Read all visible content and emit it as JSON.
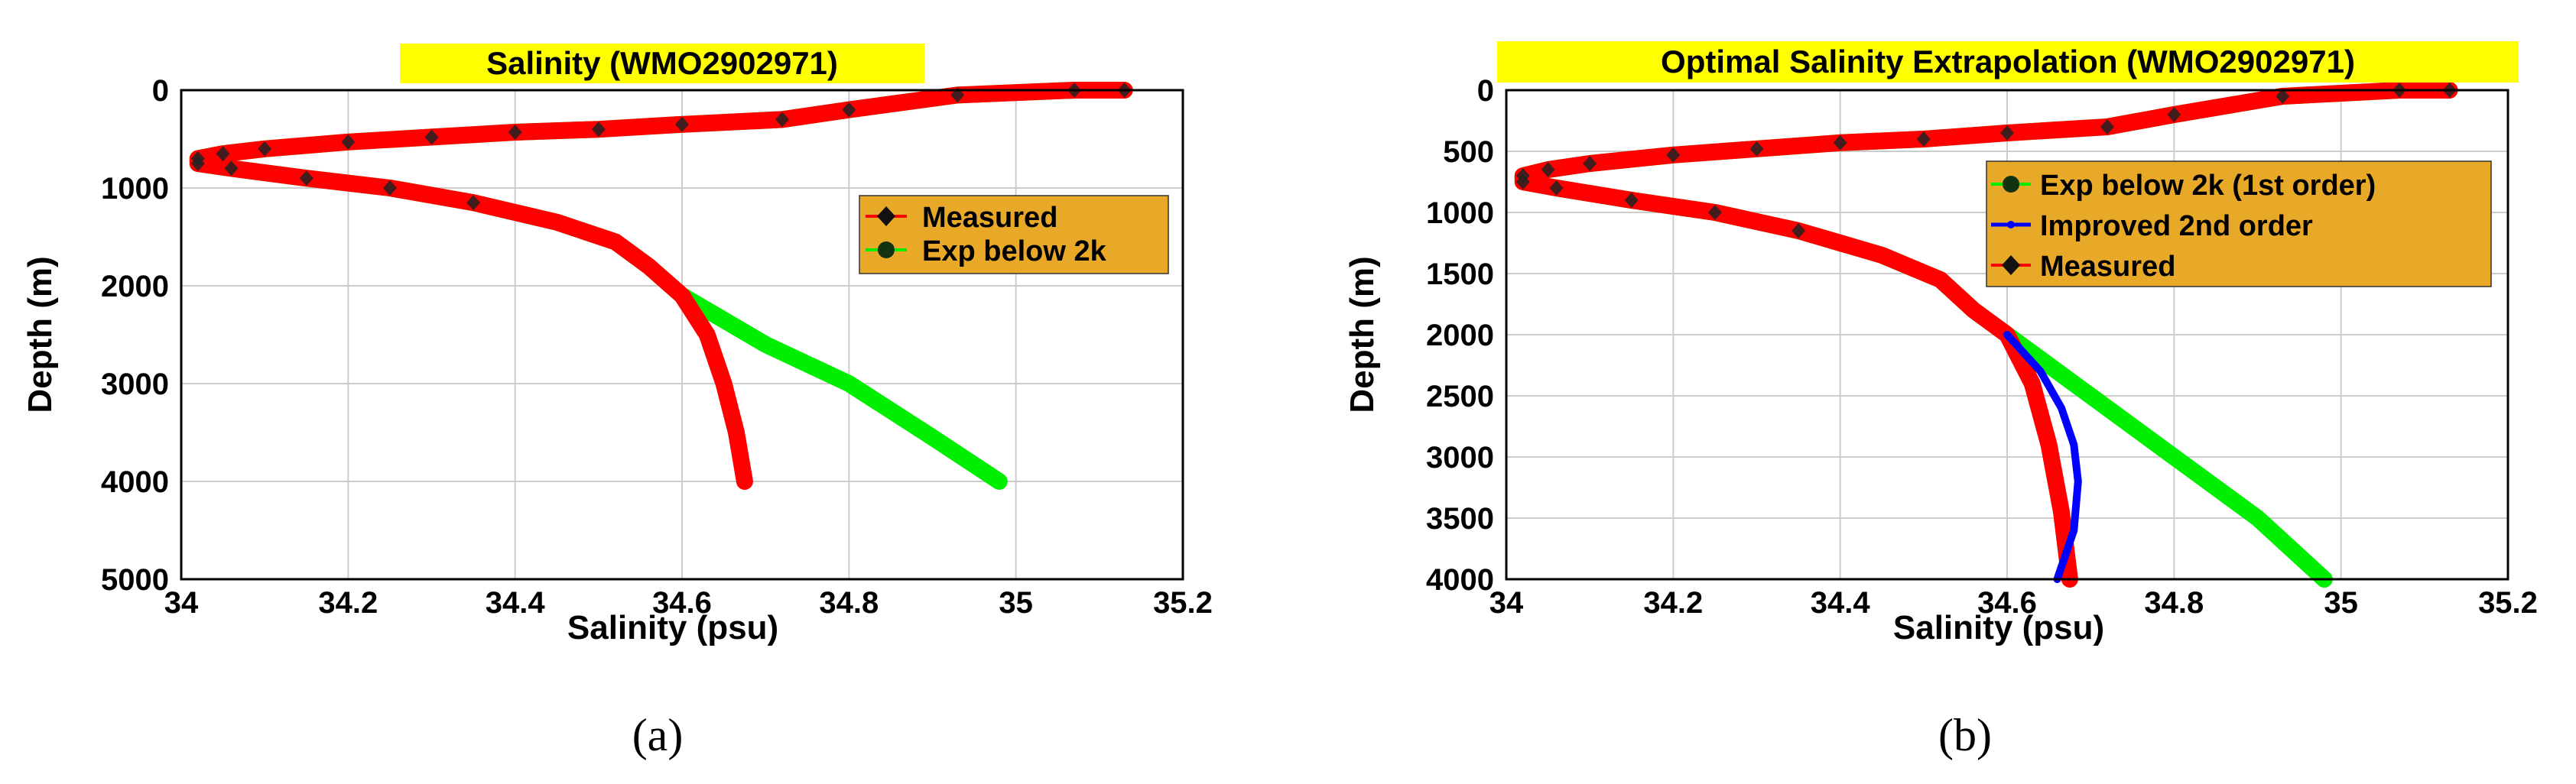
{
  "chart_data": [
    {
      "type": "line",
      "panel_label": "(a)",
      "title": "Salinity (WMO2902971)",
      "xlabel": "Salinity (psu)",
      "ylabel": "Depth (m)",
      "xlim": [
        34,
        35.2
      ],
      "ylim": [
        0,
        5000
      ],
      "y_inverted": true,
      "xticks": [
        34,
        34.2,
        34.4,
        34.6,
        34.8,
        35,
        35.2
      ],
      "xtick_labels": [
        "34",
        "34.2",
        "34.4",
        "34.6",
        "34.8",
        "35",
        "35.2"
      ],
      "yticks": [
        0,
        1000,
        2000,
        3000,
        4000,
        5000
      ],
      "ytick_labels": [
        "0",
        "1000",
        "2000",
        "3000",
        "4000",
        "5000"
      ],
      "grid": true,
      "legend_position": "right",
      "series": [
        {
          "name": "Measured",
          "color": "#ff0000",
          "marker": "diamond",
          "x": [
            35.13,
            35.07,
            34.93,
            34.8,
            34.72,
            34.6,
            34.5,
            34.4,
            34.3,
            34.2,
            34.1,
            34.05,
            34.02,
            34.02,
            34.06,
            34.15,
            34.25,
            34.35,
            34.45,
            34.52,
            34.56,
            34.6,
            34.63,
            34.65,
            34.665,
            34.675
          ],
          "y": [
            0,
            0,
            50,
            200,
            300,
            350,
            400,
            430,
            480,
            530,
            600,
            650,
            700,
            750,
            800,
            900,
            1000,
            1150,
            1350,
            1550,
            1800,
            2100,
            2500,
            3000,
            3500,
            4000
          ]
        },
        {
          "name": "Exp below 2k",
          "color": "#00ee00",
          "marker": "circle",
          "x": [
            35.13,
            35.07,
            34.93,
            34.8,
            34.72,
            34.6,
            34.5,
            34.4,
            34.3,
            34.2,
            34.1,
            34.05,
            34.02,
            34.02,
            34.06,
            34.15,
            34.25,
            34.35,
            34.45,
            34.52,
            34.56,
            34.6,
            34.7,
            34.8,
            34.9,
            34.98
          ],
          "y": [
            0,
            0,
            50,
            200,
            300,
            350,
            400,
            430,
            480,
            530,
            600,
            650,
            700,
            750,
            800,
            900,
            1000,
            1150,
            1350,
            1550,
            1800,
            2100,
            2600,
            3000,
            3550,
            4000
          ]
        }
      ]
    },
    {
      "type": "line",
      "panel_label": "(b)",
      "title": "Optimal Salinity Extrapolation (WMO2902971)",
      "xlabel": "Salinity (psu)",
      "ylabel": "Depth (m)",
      "xlim": [
        34,
        35.2
      ],
      "ylim": [
        0,
        4000
      ],
      "y_inverted": true,
      "xticks": [
        34,
        34.2,
        34.4,
        34.6,
        34.8,
        35,
        35.2
      ],
      "xtick_labels": [
        "34",
        "34.2",
        "34.4",
        "34.6",
        "34.8",
        "35",
        "35.2"
      ],
      "yticks": [
        0,
        500,
        1000,
        1500,
        2000,
        2500,
        3000,
        3500,
        4000
      ],
      "ytick_labels": [
        "0",
        "500",
        "1000",
        "1500",
        "2000",
        "2500",
        "3000",
        "3500",
        "4000"
      ],
      "grid": true,
      "legend_position": "right",
      "series": [
        {
          "name": "Exp below 2k (1st order)",
          "color": "#00ee00",
          "marker": "circle",
          "x": [
            35.13,
            35.07,
            34.93,
            34.8,
            34.72,
            34.6,
            34.5,
            34.4,
            34.3,
            34.2,
            34.1,
            34.05,
            34.02,
            34.02,
            34.06,
            34.15,
            34.25,
            34.35,
            34.45,
            34.52,
            34.56,
            34.6,
            34.7,
            34.8,
            34.9,
            34.98
          ],
          "y": [
            0,
            0,
            50,
            200,
            300,
            350,
            400,
            430,
            480,
            530,
            600,
            650,
            700,
            750,
            800,
            900,
            1000,
            1150,
            1350,
            1550,
            1800,
            2000,
            2500,
            3000,
            3500,
            4000
          ]
        },
        {
          "name": "Improved 2nd order",
          "color": "#0000ff",
          "marker": "circle",
          "x": [
            34.6,
            34.64,
            34.665,
            34.68,
            34.685,
            34.68,
            34.66
          ],
          "y": [
            2000,
            2300,
            2600,
            2900,
            3200,
            3600,
            4000
          ]
        },
        {
          "name": "Measured",
          "color": "#ff0000",
          "marker": "diamond",
          "x": [
            35.13,
            35.07,
            34.93,
            34.8,
            34.72,
            34.6,
            34.5,
            34.4,
            34.3,
            34.2,
            34.1,
            34.05,
            34.02,
            34.02,
            34.06,
            34.15,
            34.25,
            34.35,
            34.45,
            34.52,
            34.56,
            34.6,
            34.63,
            34.65,
            34.665,
            34.675
          ],
          "y": [
            0,
            0,
            50,
            200,
            300,
            350,
            400,
            430,
            480,
            530,
            600,
            650,
            700,
            750,
            800,
            900,
            1000,
            1150,
            1350,
            1550,
            1800,
            2000,
            2400,
            2900,
            3450,
            4000
          ]
        }
      ]
    }
  ],
  "colors": {
    "title_highlight": "#ffff00",
    "legend_background": "#e8a828",
    "grid": "#cccccc"
  }
}
